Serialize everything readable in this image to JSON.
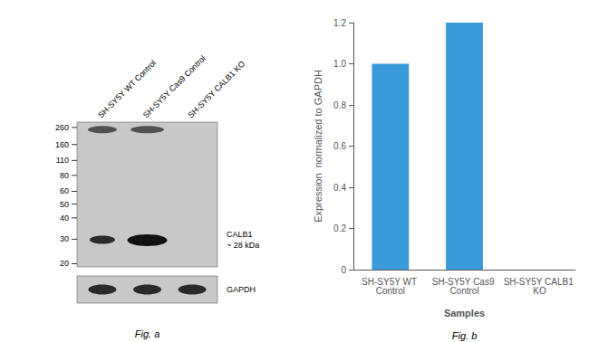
{
  "chart_data": {
    "type": "bar",
    "categories": [
      "SH-SY5Y WT Control",
      "SH-SY5Y Cas9 Control",
      "SH-SY5Y CALB1 KO"
    ],
    "values": [
      1.0,
      1.2,
      0.0
    ],
    "color": "#3a9ad9",
    "xlabel": "Samples",
    "ylabel": "Expression  normalized to GAPDH",
    "ylim": [
      0,
      1.2
    ],
    "yticks": [
      0,
      0.2,
      0.4,
      0.6,
      0.8,
      {
        "value": 1.0,
        "label": "1.0"
      },
      1.2
    ],
    "grid": false,
    "annotations": [
      "260",
      "160",
      "110",
      "80",
      "60",
      "50",
      "40",
      "30",
      "20",
      "CALB1\n~ 28 kDa",
      "GAPDH",
      "SH-SY5Y WT Control",
      "SH-SY5Y Cas9 Control",
      "SH-SY5Y CALB1 KO",
      "Fig. a",
      "Fig. b"
    ]
  }
}
